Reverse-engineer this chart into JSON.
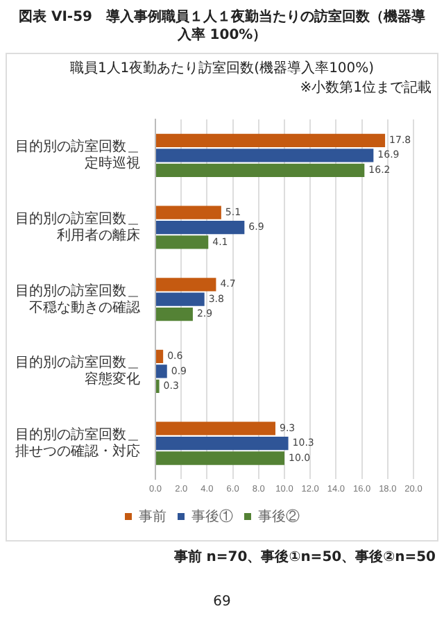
{
  "chart_data": {
    "type": "bar",
    "orientation": "horizontal",
    "title": "図表 VI-59　導入事例職員１人１夜勤当たりの訪室回数（機器導入率 100%）",
    "subtitle": "職員1人1夜勤あたり訪室回数(機器導入率100%)",
    "categories": [
      "目的別の訪室回数＿定時巡視",
      "目的別の訪室回数＿利用者の離床",
      "目的別の訪室回数＿不穏な動きの確認",
      "目的別の訪室回数＿容態変化",
      "目的別の訪室回数＿排せつの確認・対応"
    ],
    "series": [
      {
        "name": "事前",
        "color": "#c55a11",
        "values": [
          17.8,
          5.1,
          4.7,
          0.6,
          9.3
        ],
        "value_labels": [
          "17.8",
          "5.1",
          "4.7",
          "0.6",
          "9.3"
        ]
      },
      {
        "name": "事後①",
        "color": "#2f5597",
        "values": [
          16.9,
          6.9,
          3.8,
          0.9,
          10.3
        ],
        "value_labels": [
          "16.9",
          "6.9",
          "3.8",
          "0.9",
          "10.3"
        ]
      },
      {
        "name": "事後②",
        "color": "#548235",
        "values": [
          16.2,
          4.1,
          2.9,
          0.3,
          10.0
        ],
        "value_labels": [
          "16.2",
          "4.1",
          "2.9",
          "0.3",
          "10.0"
        ]
      }
    ],
    "xlim": [
      0,
      20
    ],
    "xticks": [
      {
        "value": 0,
        "label": "0.0"
      },
      {
        "value": 2,
        "label": "2.0"
      },
      {
        "value": 4,
        "label": "4.0"
      },
      {
        "value": 6,
        "label": "6.0"
      },
      {
        "value": 8,
        "label": "8.0"
      },
      {
        "value": 10,
        "label": "10.0"
      },
      {
        "value": 12,
        "label": "12.0"
      },
      {
        "value": 14,
        "label": "14.0"
      },
      {
        "value": 16,
        "label": "16.0"
      },
      {
        "value": 18,
        "label": "18.0"
      },
      {
        "value": 20,
        "label": "20.0"
      }
    ],
    "grid": "x",
    "legend": "bottom",
    "annotations": [
      "※小数第1位まで記載",
      "事前 n=70、事後①n=50、事後②n=50",
      "69"
    ]
  }
}
